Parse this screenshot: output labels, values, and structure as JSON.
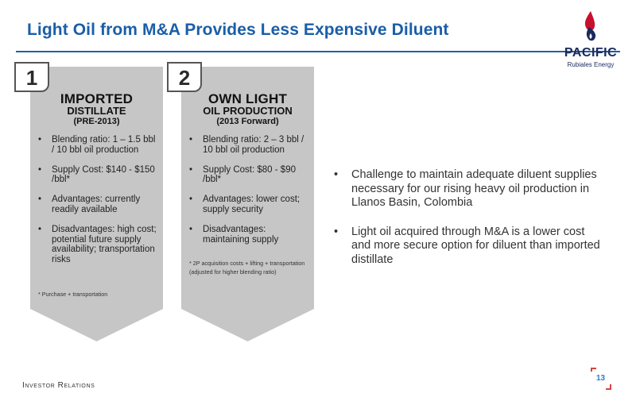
{
  "title": "Light Oil from M&A Provides Less Expensive Diluent",
  "logo": {
    "name": "PACIFIC",
    "subtitle": "Rubiales Energy"
  },
  "cards": [
    {
      "number": "1",
      "heading_line1": "IMPORTED",
      "heading_line2": "DISTILLATE",
      "heading_sub": "(PRE-2013)",
      "items": [
        "Blending ratio: 1 – 1.5 bbl / 10 bbl oil production",
        "Supply Cost: $140 - $150 /bbl*",
        "Advantages: currently readily available",
        "Disadvantages: high cost; potential future supply availability; transportation risks"
      ],
      "footnote": "* Purchase + transportation"
    },
    {
      "number": "2",
      "heading_line1": "OWN LIGHT",
      "heading_line2": "OIL PRODUCTION",
      "heading_sub": "(2013 Forward)",
      "items": [
        "Blending ratio: 2 – 3 bbl / 10 bbl oil production",
        "Supply Cost: $80 - $90 /bbl*",
        "Advantages: lower cost; supply security",
        "Disadvantages: maintaining supply"
      ],
      "footnote": "* 2P acquisition costs + lifting + transportation (adjusted for higher blending ratio)"
    }
  ],
  "bullets": [
    "Challenge to maintain adequate diluent supplies necessary for our rising heavy oil production in Llanos Basin, Colombia",
    "Light oil acquired through M&A is a lower cost and more secure option for diluent than imported distillate"
  ],
  "footer": "Investor Relations",
  "page_number": "13",
  "colors": {
    "title": "#1a5ea8",
    "card": "#c6c6c6",
    "logo_red": "#c8102e",
    "logo_navy": "#1b2a5a"
  }
}
